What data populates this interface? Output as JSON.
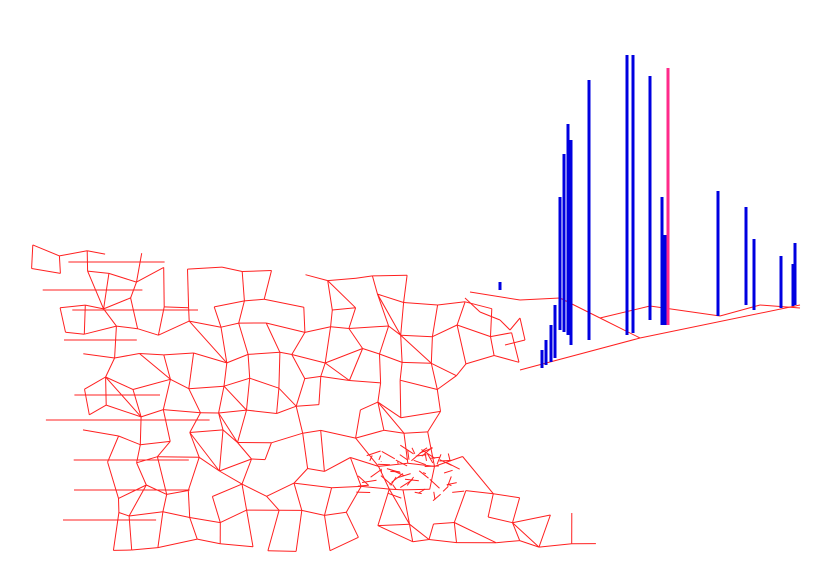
{
  "spikes": {
    "values": [
      18,
      25,
      37,
      53,
      133,
      178,
      211,
      205,
      260,
      280,
      278,
      257,
      244,
      125,
      128,
      90,
      98,
      71,
      8,
      52,
      42,
      62
    ],
    "colors": [
      "#0000e0",
      "#0000e0",
      "#0000e0",
      "#0000e0",
      "#0000e0",
      "#0000e0",
      "#0000e0",
      "#0000e0",
      "#0000e0",
      "#0000e0",
      "#0000e0",
      "#ff2a8a",
      "#0000e0",
      "#0000e0",
      "#0000e0",
      "#0000e0",
      "#0000e0",
      "#0000e0",
      "#0000e0",
      "#0000e0",
      "#0000e0",
      "#0000e0"
    ]
  }
}
